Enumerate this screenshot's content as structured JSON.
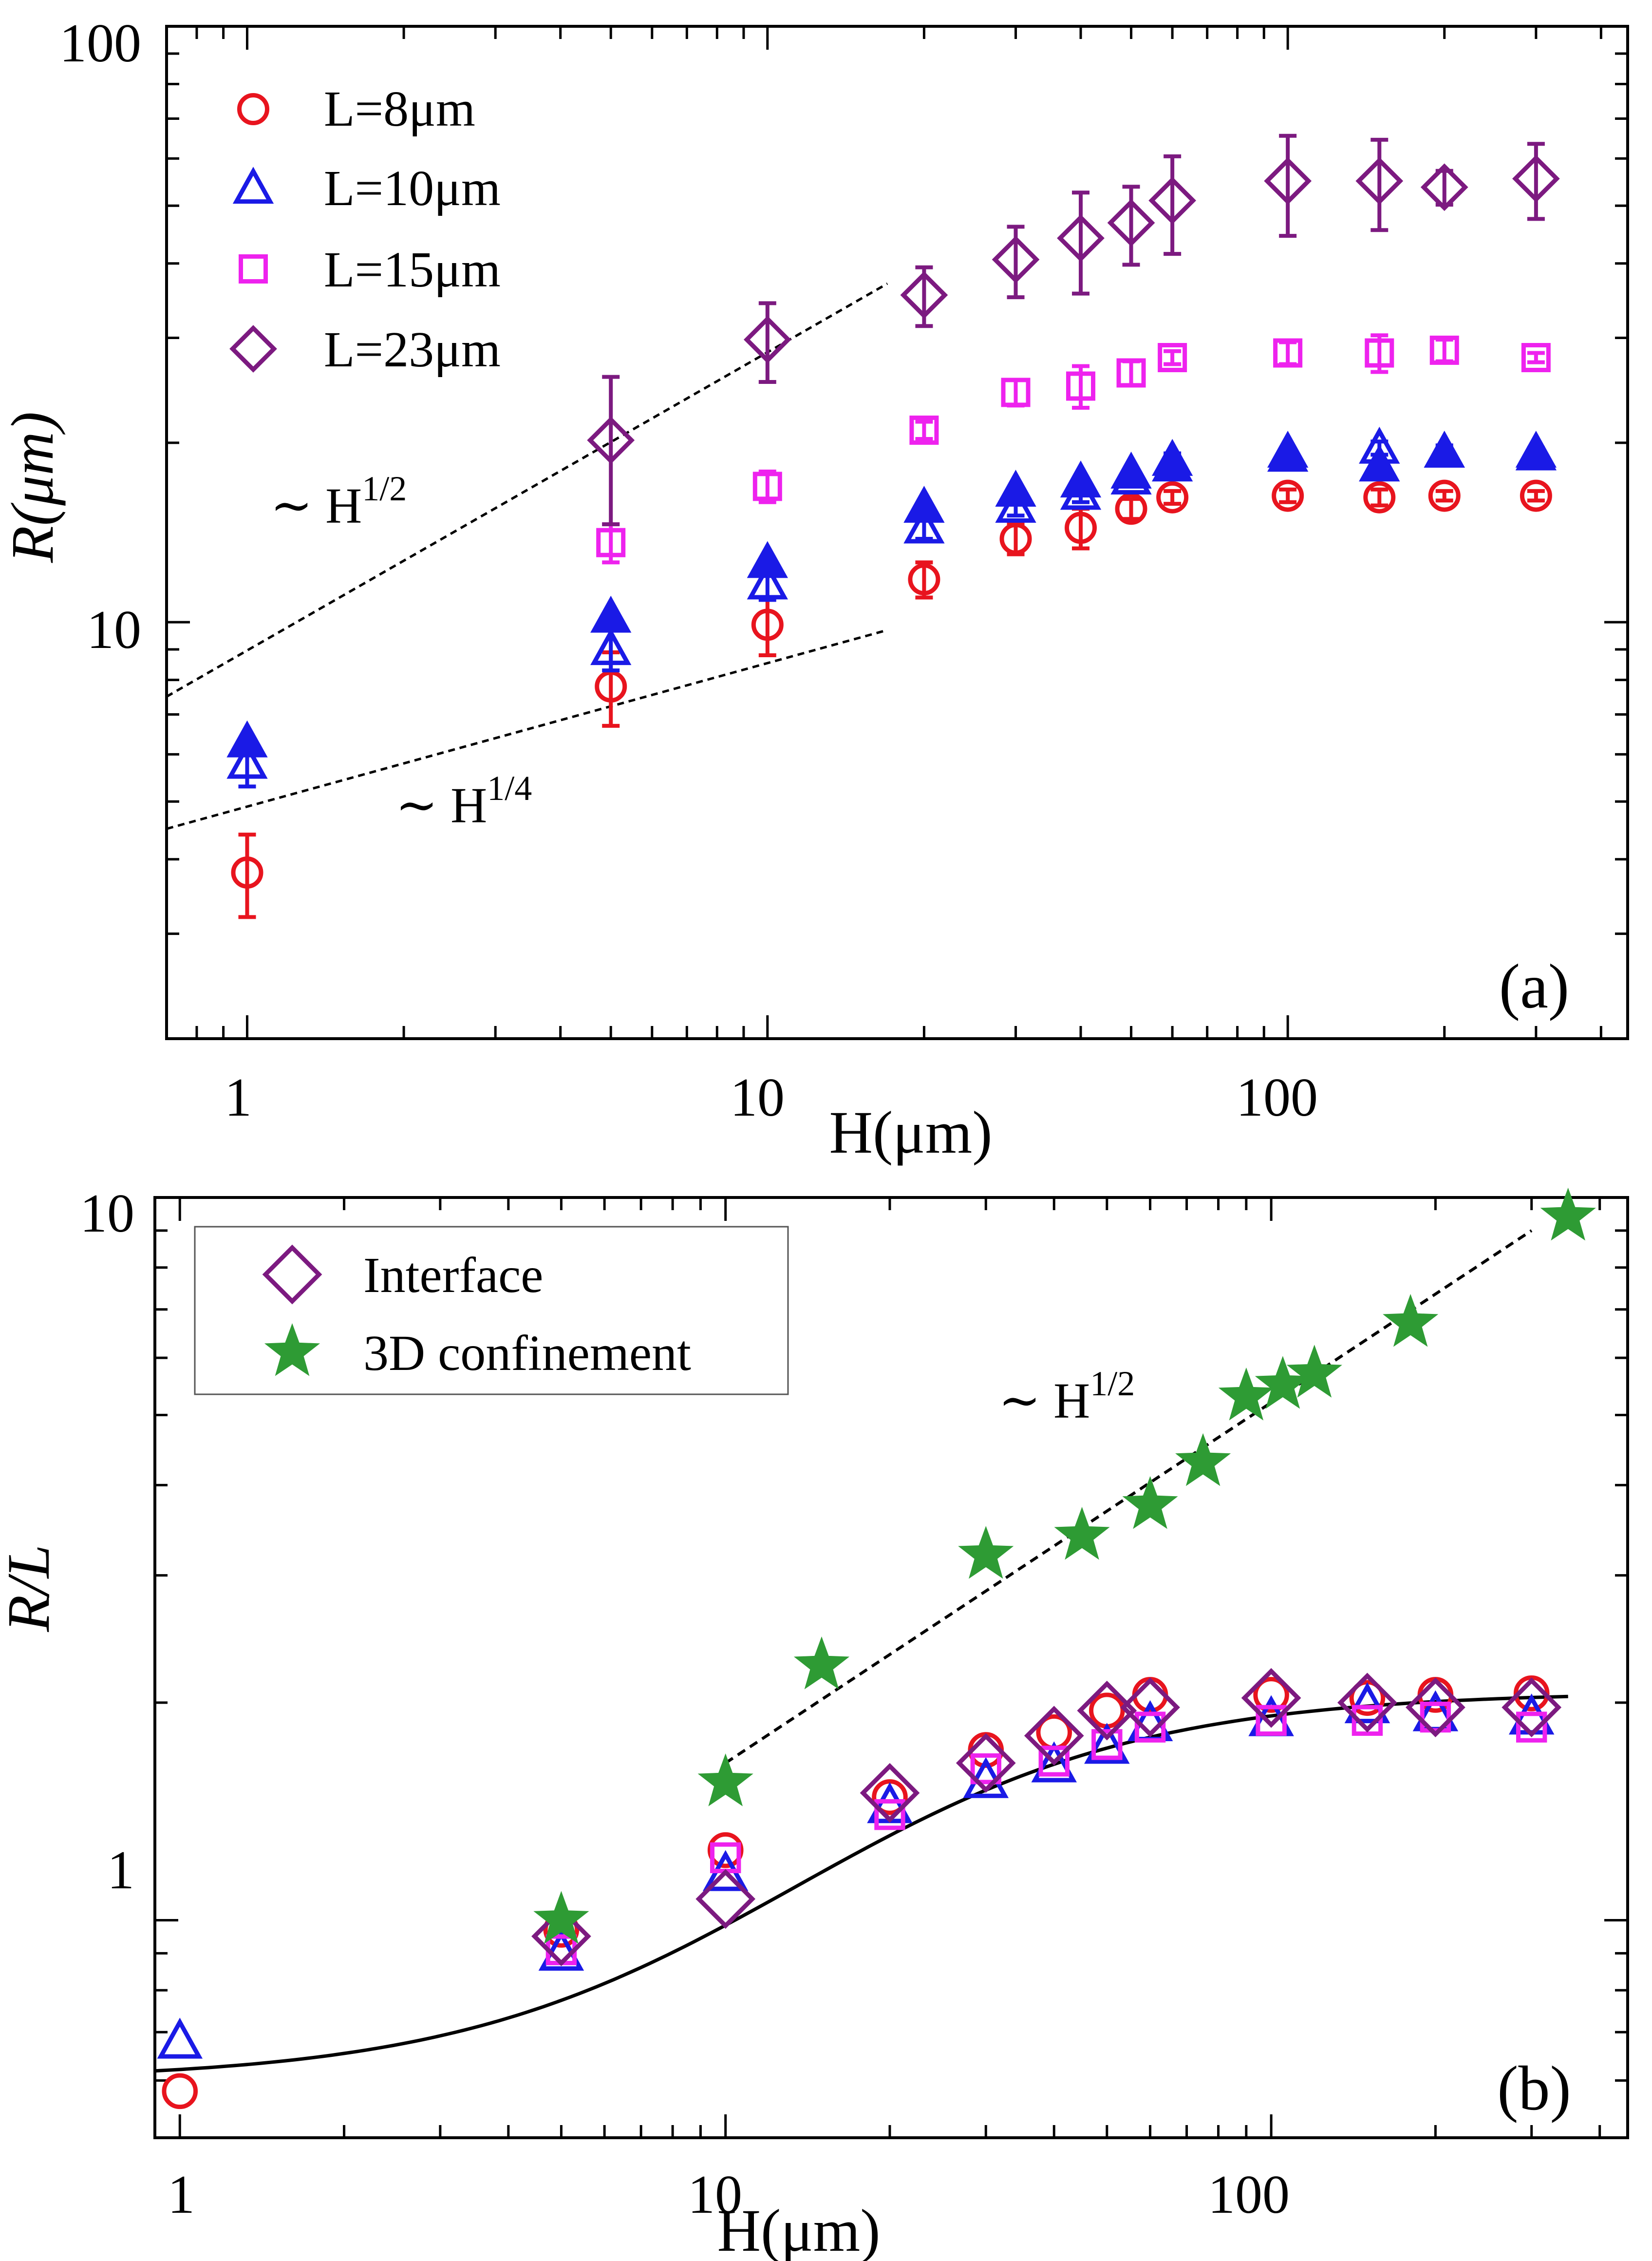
{
  "chart_data": [
    {
      "panel": "(a)",
      "type": "scatter",
      "xscale": "log",
      "yscale": "log",
      "xlim": [
        0.7,
        450
      ],
      "ylim": [
        2.0,
        100
      ],
      "xlabel": "H(μm)",
      "ylabel": "R(μm)",
      "xticks": [
        {
          "value": 1,
          "label": "1"
        },
        {
          "value": 10,
          "label": "10"
        },
        {
          "value": 100,
          "label": "100"
        }
      ],
      "yticks": [
        {
          "value": 10,
          "label": "10"
        },
        {
          "value": 100,
          "label": "100"
        }
      ],
      "legend_position": "top-left",
      "series": [
        {
          "name": "L=8μm",
          "legend": "L=8μm",
          "marker": "circle",
          "color": "#e8141e",
          "filled": false,
          "x": [
            1,
            5,
            10,
            20,
            30,
            40,
            50,
            60,
            100,
            150,
            200,
            300
          ],
          "y": [
            3.8,
            7.8,
            9.9,
            11.8,
            13.8,
            14.4,
            15.5,
            16.2,
            16.3,
            16.2,
            16.3,
            16.3
          ],
          "yerr": [
            0.6,
            1.1,
            1.1,
            0.8,
            0.8,
            1.1,
            0.6,
            0.4,
            0.4,
            0.5,
            0.3,
            0.3
          ]
        },
        {
          "name": "L=10μm open",
          "marker": "triangle",
          "color": "#1a1ae6",
          "filled": false,
          "x": [
            1,
            5,
            10,
            20,
            30,
            40,
            50,
            60,
            100,
            150,
            200,
            300
          ],
          "y": [
            5.8,
            9.0,
            11.6,
            14.4,
            15.6,
            16.4,
            17.4,
            18.7,
            19.0,
            19.6,
            19.3,
            19.1
          ],
          "yerr": [
            0.5,
            0.7,
            0.7,
            0.6,
            0.5,
            0.5,
            0.5,
            0.5,
            0.5,
            0.5,
            0.5,
            0.5
          ]
        },
        {
          "name": "L=10μm filled",
          "legend": "L=10μm",
          "marker": "triangle",
          "color": "#1a1ae6",
          "filled": true,
          "x": [
            1,
            5,
            10,
            20,
            30,
            40,
            50,
            60,
            100,
            150,
            200,
            300
          ],
          "y": [
            6.3,
            10.2,
            12.6,
            15.6,
            16.6,
            17.2,
            17.8,
            18.3,
            19.3,
            18.3,
            19.3,
            19.3
          ],
          "yerr": [
            0,
            0,
            0,
            0,
            0,
            0,
            0,
            0,
            0,
            0,
            0,
            0
          ]
        },
        {
          "name": "L=15μm",
          "legend": "L=15μm",
          "marker": "square",
          "color": "#ee22ee",
          "filled": false,
          "x": [
            5,
            10,
            20,
            30,
            40,
            50,
            60,
            100,
            150,
            200,
            300
          ],
          "y": [
            13.6,
            16.9,
            21.0,
            24.3,
            24.9,
            26.2,
            27.8,
            28.3,
            28.3,
            28.6,
            27.8
          ],
          "yerr": [
            1.0,
            1.0,
            0.7,
            1.2,
            2.0,
            1.2,
            0.7,
            1.2,
            2.0,
            1.2,
            0.5
          ]
        },
        {
          "name": "L=23μm",
          "legend": "L=23μm",
          "marker": "diamond",
          "color": "#7c1a80",
          "filled": false,
          "x": [
            5,
            10,
            20,
            30,
            40,
            50,
            60,
            100,
            150,
            200,
            300
          ],
          "y": [
            20.2,
            29.8,
            35.4,
            40.6,
            44.1,
            46.8,
            51.0,
            55.0,
            55.0,
            53.7,
            55.5
          ],
          "yerr": [
            5.6,
            4.5,
            4.0,
            5.5,
            8.5,
            7.0,
            9.5,
            10.5,
            9.5,
            3.5,
            8.0
          ]
        }
      ],
      "guides": [
        {
          "label": "~ H^{1/2}",
          "slope_text": "1/2",
          "x": [
            0.7,
            17
          ],
          "y": [
            7.5,
            37.0
          ]
        },
        {
          "label": "~ H^{1/4}",
          "slope_text": "1/4",
          "x": [
            0.7,
            17
          ],
          "y": [
            4.5,
            9.7
          ]
        }
      ]
    },
    {
      "panel": "(b)",
      "type": "scatter",
      "xscale": "log",
      "yscale": "log",
      "xlim": [
        0.9,
        450
      ],
      "ylim": [
        0.5,
        10
      ],
      "xlabel": "H(μm)",
      "ylabel": "R/L",
      "xticks": [
        {
          "value": 1,
          "label": "1"
        },
        {
          "value": 10,
          "label": "10"
        },
        {
          "value": 100,
          "label": "100"
        }
      ],
      "yticks": [
        {
          "value": 1,
          "label": "1"
        },
        {
          "value": 10,
          "label": "10"
        }
      ],
      "legend_position": "top-left",
      "series": [
        {
          "name": "L=8μm",
          "marker": "circle",
          "color": "#e8141e",
          "filled": false,
          "x": [
            1,
            5,
            10,
            20,
            30,
            40,
            50,
            60,
            100,
            150,
            200,
            300
          ],
          "y": [
            0.58,
            0.97,
            1.25,
            1.48,
            1.72,
            1.82,
            1.95,
            2.05,
            2.05,
            2.03,
            2.05,
            2.06
          ]
        },
        {
          "name": "L=10μm",
          "marker": "triangle",
          "color": "#1a1ae6",
          "filled": false,
          "x": [
            1,
            5,
            10,
            20,
            30,
            40,
            50,
            60,
            100,
            150,
            200,
            300
          ],
          "y": [
            0.68,
            0.9,
            1.16,
            1.44,
            1.56,
            1.64,
            1.74,
            1.87,
            1.9,
            1.98,
            1.93,
            1.91
          ]
        },
        {
          "name": "L=15μm",
          "marker": "square",
          "color": "#ee22ee",
          "filled": false,
          "x": [
            5,
            10,
            20,
            30,
            40,
            50,
            60,
            100,
            150,
            200,
            300
          ],
          "y": [
            0.91,
            1.22,
            1.4,
            1.62,
            1.66,
            1.75,
            1.85,
            1.89,
            1.89,
            1.91,
            1.85
          ]
        },
        {
          "name": "Interface",
          "legend": "Interface",
          "marker": "diamond",
          "color": "#7c1a80",
          "filled": false,
          "x": [
            5,
            10,
            20,
            30,
            40,
            50,
            60,
            100,
            150,
            200,
            300
          ],
          "y": [
            0.95,
            1.07,
            1.5,
            1.65,
            1.8,
            1.95,
            1.97,
            2.03,
            2.0,
            1.97,
            1.97
          ]
        },
        {
          "name": "3D confinement",
          "legend": "3D confinement",
          "marker": "star",
          "color": "#2e9b34",
          "filled": true,
          "x": [
            5,
            10,
            15,
            30,
            45,
            60,
            75,
            90,
            105,
            120,
            180,
            350
          ],
          "y": [
            1.0,
            1.55,
            2.25,
            3.2,
            3.4,
            3.75,
            4.3,
            5.3,
            5.5,
            5.7,
            6.7,
            9.4
          ]
        }
      ],
      "fit_curve": {
        "type": "sigmoid-in-log",
        "low": 0.6,
        "high": 2.07,
        "x_mid": 13.5,
        "width_decades": 0.32,
        "x_range": [
          0.9,
          350
        ]
      },
      "guides": [
        {
          "label": "~ H^{1/2}",
          "slope_text": "1/2",
          "x": [
            10,
            300
          ],
          "y": [
            1.65,
            9.0
          ]
        }
      ]
    }
  ]
}
